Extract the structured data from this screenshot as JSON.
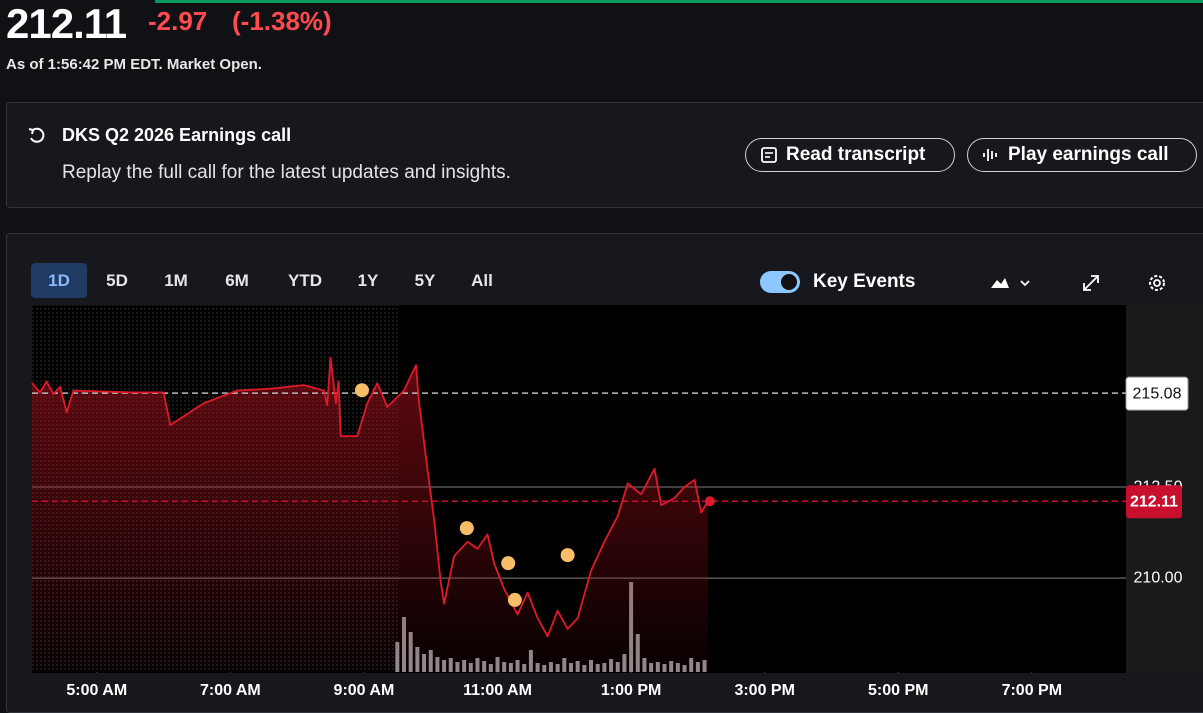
{
  "quote": {
    "price": "212.11",
    "change": "-2.97",
    "change_percent": "(-1.38%)",
    "as_of": "As of 1:56:42 PM EDT. Market Open."
  },
  "earnings": {
    "title": "DKS Q2 2026 Earnings call",
    "subtitle": "Replay the full call for the latest updates and insights.",
    "buttons": [
      "Read transcript",
      "Play earnings call"
    ]
  },
  "ranges": [
    "1D",
    "5D",
    "1M",
    "6M",
    "YTD",
    "1Y",
    "5Y",
    "All"
  ],
  "selected_range": "1D",
  "chart_data": {
    "type": "line",
    "xlim": [
      4.03,
      20.41
    ],
    "xticks": [
      {
        "value": 5,
        "label": "5:00 AM"
      },
      {
        "value": 7,
        "label": "7:00 AM"
      },
      {
        "value": 9,
        "label": "9:00 AM"
      },
      {
        "value": 11,
        "label": "11:00 AM"
      },
      {
        "value": 13,
        "label": "1:00 PM"
      },
      {
        "value": 15,
        "label": "3:00 PM"
      },
      {
        "value": 17,
        "label": "5:00 PM"
      },
      {
        "value": 19,
        "label": "7:00 PM"
      }
    ],
    "ylim": [
      207.42,
      217.5
    ],
    "yticks": [
      {
        "value": 210,
        "label": "210.00"
      },
      {
        "value": 212.5,
        "label": "212.50"
      }
    ],
    "grid": true,
    "reference_lines": [
      {
        "value": 215.08,
        "color": "#bbbbbb"
      },
      {
        "value": 212.11,
        "color": "#c8102e"
      }
    ],
    "series": [
      {
        "color": "#e0192b",
        "x": [
          4.03,
          4.15,
          4.25,
          4.35,
          4.45,
          4.55,
          4.65,
          5.5,
          6.0,
          6.1,
          6.6,
          7.1,
          7.6,
          8.1,
          8.4,
          8.45,
          8.5,
          8.58,
          8.62,
          8.65,
          8.9,
          9.05,
          9.2,
          9.35,
          9.6,
          9.78,
          9.82,
          9.95,
          10.05,
          10.15,
          10.2,
          10.35,
          10.55,
          10.7,
          10.85,
          10.95,
          11.1,
          11.3,
          11.45,
          11.6,
          11.75,
          11.9,
          12.05,
          12.2,
          12.4,
          12.6,
          12.8,
          12.95,
          13.15,
          13.35,
          13.45,
          13.65,
          13.8,
          13.95,
          14.05,
          14.15
        ],
        "values": [
          215.36,
          215.1,
          215.4,
          215.05,
          215.25,
          214.55,
          215.15,
          215.1,
          215.1,
          214.2,
          214.8,
          215.15,
          215.2,
          215.3,
          215.15,
          214.75,
          216.05,
          214.8,
          215.4,
          213.9,
          213.9,
          214.8,
          215.35,
          214.7,
          215.15,
          215.85,
          214.9,
          213.0,
          211.6,
          209.9,
          209.3,
          210.6,
          211.0,
          210.8,
          211.2,
          210.4,
          209.7,
          209.0,
          209.6,
          208.9,
          208.4,
          209.1,
          208.6,
          208.9,
          210.2,
          211.0,
          211.7,
          212.6,
          212.3,
          213.0,
          212.0,
          212.2,
          212.5,
          212.7,
          211.8,
          212.11
        ]
      },
      {
        "name": "Key Events",
        "color": "#f7bd69",
        "x": [
          8.97,
          10.54,
          11.16,
          11.26,
          12.05
        ],
        "values": [
          215.16,
          211.37,
          210.41,
          209.4,
          210.63
        ]
      }
    ],
    "volume": {
      "color": "#bdbdbd",
      "x": [
        9.5,
        9.6,
        9.7,
        9.8,
        9.9,
        10.0,
        10.1,
        10.2,
        10.3,
        10.4,
        10.5,
        10.6,
        10.7,
        10.8,
        10.9,
        11.0,
        11.1,
        11.2,
        11.3,
        11.4,
        11.5,
        11.6,
        11.7,
        11.8,
        11.9,
        12.0,
        12.1,
        12.2,
        12.3,
        12.4,
        12.5,
        12.6,
        12.7,
        12.8,
        12.9,
        13.0,
        13.1,
        13.2,
        13.3,
        13.4,
        13.5,
        13.6,
        13.7,
        13.8,
        13.9,
        14.0,
        14.1
      ],
      "values": [
        30,
        55,
        40,
        25,
        18,
        22,
        15,
        12,
        14,
        10,
        12,
        9,
        14,
        11,
        8,
        15,
        10,
        9,
        12,
        8,
        22,
        9,
        7,
        10,
        8,
        14,
        9,
        11,
        7,
        12,
        8,
        9,
        13,
        10,
        18,
        90,
        38,
        14,
        9,
        10,
        8,
        11,
        9,
        7,
        14,
        10,
        12
      ]
    }
  }
}
